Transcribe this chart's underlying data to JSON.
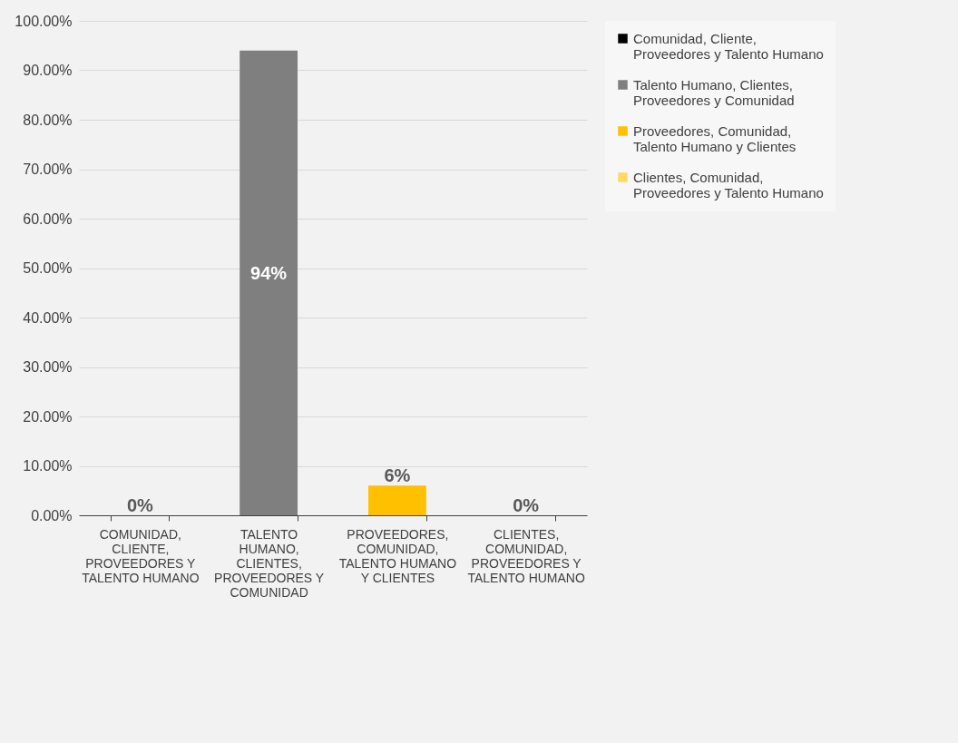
{
  "chart_data": {
    "type": "bar",
    "categories": [
      "COMUNIDAD, CLIENTE, PROVEEDORES Y TALENTO HUMANO",
      "TALENTO HUMANO, CLIENTES, PROVEEDORES Y COMUNIDAD",
      "PROVEEDORES, COMUNIDAD, TALENTO HUMANO Y CLIENTES",
      "CLIENTES, COMUNIDAD, PROVEEDORES Y TALENTO HUMANO"
    ],
    "series": [
      {
        "name": "Comunidad, Cliente, Proveedores y Talento Humano",
        "color": "#000000",
        "values": [
          0,
          null,
          null,
          null
        ],
        "value_labels": [
          "0%",
          null,
          null,
          null
        ]
      },
      {
        "name": "Talento Humano, Clientes, Proveedores y Comunidad",
        "color": "#7f7f7f",
        "values": [
          null,
          94,
          null,
          null
        ],
        "value_labels": [
          null,
          "94%",
          null,
          null
        ]
      },
      {
        "name": "Proveedores, Comunidad, Talento Humano y Clientes",
        "color": "#ffc000",
        "values": [
          null,
          null,
          6,
          null
        ],
        "value_labels": [
          null,
          null,
          "6%",
          null
        ]
      },
      {
        "name": "Clientes, Comunidad, Proveedores y Talento Humano",
        "color": "#ffd966",
        "values": [
          null,
          null,
          null,
          0
        ],
        "value_labels": [
          null,
          null,
          null,
          "0%"
        ]
      }
    ],
    "ylim": [
      0,
      100
    ],
    "yticks": [
      {
        "value": 0,
        "label": "0.00%"
      },
      {
        "value": 10,
        "label": "10.00%"
      },
      {
        "value": 20,
        "label": "20.00%"
      },
      {
        "value": 30,
        "label": "30.00%"
      },
      {
        "value": 40,
        "label": "40.00%"
      },
      {
        "value": 50,
        "label": "50.00%"
      },
      {
        "value": 60,
        "label": "60.00%"
      },
      {
        "value": 70,
        "label": "70.00%"
      },
      {
        "value": 80,
        "label": "80.00%"
      },
      {
        "value": 90,
        "label": "90.00%"
      },
      {
        "value": 100,
        "label": "100.00%"
      }
    ],
    "grid": "y",
    "legend": "right"
  }
}
